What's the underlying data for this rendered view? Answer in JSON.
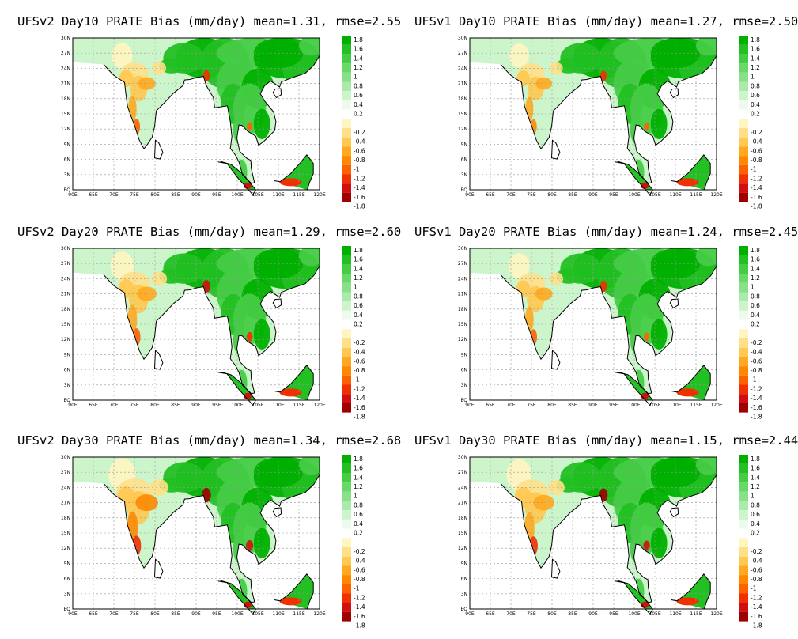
{
  "colors": {
    "land": "#ffffff",
    "positive": [
      "#00b000",
      "#22c022",
      "#44cc44",
      "#66d966",
      "#88e088",
      "#aaeaaa",
      "#ccf5cc",
      "#eefaee"
    ],
    "negative": [
      "#fff5c0",
      "#ffe08a",
      "#ffc850",
      "#ffa820",
      "#ff8800",
      "#ff6000",
      "#f03000",
      "#d01010",
      "#a00000"
    ]
  },
  "axes": {
    "x_ticks": [
      "90E",
      "65E",
      "70E",
      "75E",
      "80E",
      "85E",
      "90E",
      "95E",
      "100E",
      "105E",
      "110E",
      "115E",
      "120E"
    ],
    "y_ticks": [
      "30N",
      "27N",
      "24N",
      "21N",
      "18N",
      "15N",
      "12N",
      "9N",
      "6N",
      "3N",
      "EQ"
    ]
  },
  "colorbar": {
    "positive_labels": [
      "1.8",
      "1.6",
      "1.4",
      "1.2",
      "1",
      "0.8",
      "0.6",
      "0.4",
      "0.2"
    ],
    "negative_labels": [
      "-0.2",
      "-0.4",
      "-0.6",
      "-0.8",
      "-1",
      "-1.2",
      "-1.4",
      "-1.6",
      "-1.8"
    ]
  },
  "panels": [
    {
      "id": "ufsv2-day10",
      "title": "UFSv2 Day10 PRATE Bias (mm/day) mean=1.31, rmse=2.55",
      "model": "UFSv2",
      "lead": "Day10",
      "dry_intensity": 0.5
    },
    {
      "id": "ufsv1-day10",
      "title": "UFSv1 Day10 PRATE Bias (mm/day) mean=1.27, rmse=2.50",
      "model": "UFSv1",
      "lead": "Day10",
      "dry_intensity": 0.4
    },
    {
      "id": "ufsv2-day20",
      "title": "UFSv2 Day20 PRATE Bias (mm/day) mean=1.29, rmse=2.60",
      "model": "UFSv2",
      "lead": "Day20",
      "dry_intensity": 0.7
    },
    {
      "id": "ufsv1-day20",
      "title": "UFSv1 Day20 PRATE Bias (mm/day) mean=1.24, rmse=2.45",
      "model": "UFSv1",
      "lead": "Day20",
      "dry_intensity": 0.5
    },
    {
      "id": "ufsv2-day30",
      "title": "UFSv2 Day30 PRATE Bias (mm/day) mean=1.34, rmse=2.68",
      "model": "UFSv2",
      "lead": "Day30",
      "dry_intensity": 1.0
    },
    {
      "id": "ufsv1-day30",
      "title": "UFSv1 Day30 PRATE Bias (mm/day) mean=1.15, rmse=2.44",
      "model": "UFSv1",
      "lead": "Day30",
      "dry_intensity": 0.85
    }
  ]
}
